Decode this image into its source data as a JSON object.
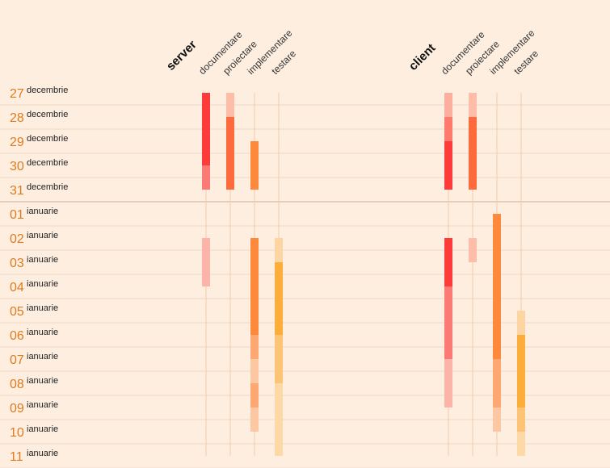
{
  "chart_data": {
    "type": "gantt",
    "rows": [
      {
        "day": "27",
        "month": "decembrie"
      },
      {
        "day": "28",
        "month": "decembrie"
      },
      {
        "day": "29",
        "month": "decembrie"
      },
      {
        "day": "30",
        "month": "decembrie"
      },
      {
        "day": "31",
        "month": "decembrie"
      },
      {
        "day": "01",
        "month": "ianuarie"
      },
      {
        "day": "02",
        "month": "ianuarie"
      },
      {
        "day": "03",
        "month": "ianuarie"
      },
      {
        "day": "04",
        "month": "ianuarie"
      },
      {
        "day": "05",
        "month": "ianuarie"
      },
      {
        "day": "06",
        "month": "ianuarie"
      },
      {
        "day": "07",
        "month": "ianuarie"
      },
      {
        "day": "08",
        "month": "ianuarie"
      },
      {
        "day": "09",
        "month": "ianuarie"
      },
      {
        "day": "10",
        "month": "ianuarie"
      },
      {
        "day": "11",
        "month": "ianuarie"
      }
    ],
    "groups": [
      {
        "label": "server",
        "tasks": [
          {
            "label": "documentare",
            "segments": [
              {
                "start": 0,
                "end": 3,
                "color": "#fd3b3b"
              },
              {
                "start": 3,
                "end": 4,
                "color": "#fb7a75"
              },
              {
                "start": 6,
                "end": 8,
                "color": "#fdb4a8"
              }
            ]
          },
          {
            "label": "proiectare",
            "segments": [
              {
                "start": 0,
                "end": 1,
                "color": "#fdbda8"
              },
              {
                "start": 1,
                "end": 4,
                "color": "#fd6a3c"
              }
            ]
          },
          {
            "label": "implementare",
            "segments": [
              {
                "start": 2,
                "end": 4,
                "color": "#fd8a3c"
              },
              {
                "start": 6,
                "end": 10,
                "color": "#fd8a3c"
              },
              {
                "start": 10,
                "end": 11,
                "color": "#fda873"
              },
              {
                "start": 11,
                "end": 12,
                "color": "#fdc7a3"
              },
              {
                "start": 12,
                "end": 13,
                "color": "#fda873"
              },
              {
                "start": 13,
                "end": 14,
                "color": "#fdc7a3"
              }
            ]
          },
          {
            "label": "testare",
            "segments": [
              {
                "start": 6,
                "end": 7,
                "color": "#fdd5a3"
              },
              {
                "start": 7,
                "end": 10,
                "color": "#fdae3a"
              },
              {
                "start": 10,
                "end": 12,
                "color": "#fdc476"
              },
              {
                "start": 12,
                "end": 15,
                "color": "#fdd9a8"
              }
            ]
          }
        ]
      },
      {
        "label": "client",
        "tasks": [
          {
            "label": "documentare",
            "segments": [
              {
                "start": 0,
                "end": 1,
                "color": "#fdaf9f"
              },
              {
                "start": 1,
                "end": 2,
                "color": "#fd7a6c"
              },
              {
                "start": 2,
                "end": 4,
                "color": "#fd3b3b"
              },
              {
                "start": 6,
                "end": 8,
                "color": "#fd3b3b"
              },
              {
                "start": 8,
                "end": 11,
                "color": "#fb7a75"
              },
              {
                "start": 11,
                "end": 13,
                "color": "#fdb4a8"
              }
            ]
          },
          {
            "label": "proiectare",
            "segments": [
              {
                "start": 0,
                "end": 1,
                "color": "#fdbda8"
              },
              {
                "start": 1,
                "end": 4,
                "color": "#fd6a3c"
              },
              {
                "start": 6,
                "end": 7,
                "color": "#fdbda8"
              }
            ]
          },
          {
            "label": "implementare",
            "segments": [
              {
                "start": 5,
                "end": 11,
                "color": "#fd8a3c"
              },
              {
                "start": 11,
                "end": 13,
                "color": "#fda873"
              },
              {
                "start": 13,
                "end": 14,
                "color": "#fdc7a3"
              }
            ]
          },
          {
            "label": "testare",
            "segments": [
              {
                "start": 9,
                "end": 10,
                "color": "#fdd5a3"
              },
              {
                "start": 10,
                "end": 13,
                "color": "#fdae3a"
              },
              {
                "start": 13,
                "end": 14,
                "color": "#fdc476"
              },
              {
                "start": 14,
                "end": 15,
                "color": "#fdd9a8"
              }
            ]
          }
        ]
      }
    ],
    "colors": {
      "background": "#fdeee0",
      "day_number": "#e07a1e",
      "row_divider": "#eed8c3",
      "month_divider": "#c9b09b",
      "track_line": "#f5c9a8"
    }
  }
}
